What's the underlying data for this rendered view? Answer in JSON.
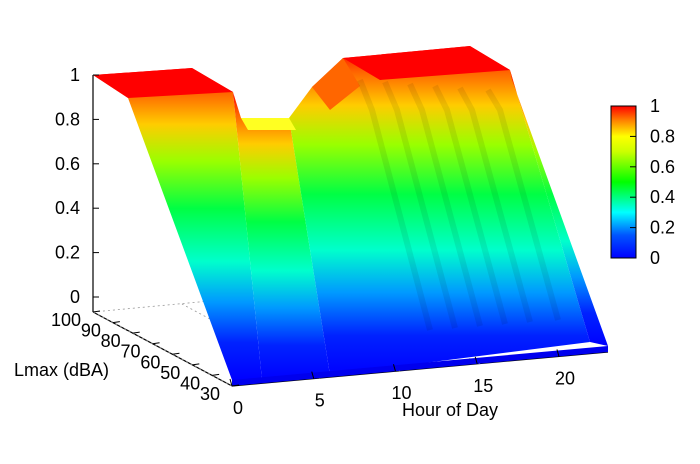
{
  "chart_data": {
    "type": "surface",
    "title": "",
    "xlabel": "Hour of Day",
    "ylabel": "Lmax (dBA)",
    "zlabel": "",
    "x_ticks": [
      "0",
      "5",
      "10",
      "15",
      "20"
    ],
    "y_ticks": [
      "30",
      "40",
      "50",
      "60",
      "70",
      "80",
      "90",
      "100"
    ],
    "z_ticks": [
      "0",
      "0.2",
      "0.4",
      "0.6",
      "0.8",
      "1"
    ],
    "xlim": [
      0,
      23
    ],
    "ylim": [
      30,
      100
    ],
    "zlim": [
      0,
      1
    ],
    "colorbar": {
      "ticks": [
        "0",
        "0.2",
        "0.4",
        "0.6",
        "0.8",
        "1"
      ],
      "range": [
        0,
        1
      ],
      "palette": [
        "#0000ff",
        "#00aaff",
        "#00ffff",
        "#00ff00",
        "#aaff00",
        "#ffff00",
        "#ff9900",
        "#ff0000"
      ]
    },
    "surface_profiles": [
      {
        "hour": 0,
        "lmax": [
          30,
          40,
          50,
          60,
          70,
          80,
          90,
          100
        ],
        "value": [
          1.0,
          1.0,
          1.0,
          0.9,
          0.6,
          0.3,
          0.1,
          0.0
        ]
      },
      {
        "hour": 4,
        "lmax": [
          30,
          40,
          50,
          60,
          70,
          80,
          90,
          100
        ],
        "value": [
          0.8,
          0.8,
          0.8,
          0.7,
          0.5,
          0.2,
          0.05,
          0.0
        ]
      },
      {
        "hour": 7,
        "lmax": [
          30,
          40,
          50,
          60,
          70,
          80,
          90,
          100
        ],
        "value": [
          1.0,
          1.0,
          1.0,
          0.9,
          0.6,
          0.3,
          0.1,
          0.0
        ]
      },
      {
        "hour": 14,
        "lmax": [
          30,
          40,
          50,
          60,
          70,
          80,
          90,
          100
        ],
        "value": [
          1.0,
          1.0,
          1.0,
          0.95,
          0.7,
          0.4,
          0.1,
          0.0
        ]
      },
      {
        "hour": 23,
        "lmax": [
          30,
          40,
          50,
          60,
          70,
          80,
          90,
          100
        ],
        "value": [
          1.0,
          1.0,
          1.0,
          0.95,
          0.7,
          0.4,
          0.1,
          0.0
        ]
      }
    ],
    "grid": true,
    "legend_placement": "right"
  }
}
